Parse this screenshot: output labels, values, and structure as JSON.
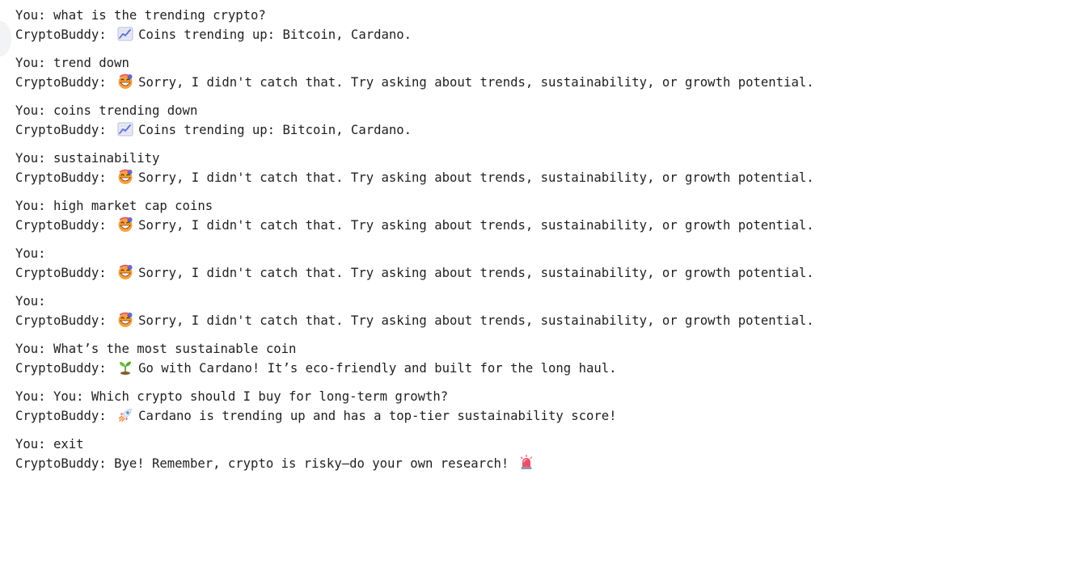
{
  "you_label": "You:",
  "bot_label": "CryptoBuddy:",
  "exchanges": [
    {
      "user": "what is the trending crypto?",
      "icon": "chart-increasing-icon",
      "reply": "Coins trending up: Bitcoin, Cardano."
    },
    {
      "user": "trend down",
      "icon": "grinning-face-icon",
      "reply": "Sorry, I didn't catch that. Try asking about trends, sustainability, or growth potential."
    },
    {
      "user": "coins trending down",
      "icon": "chart-increasing-icon",
      "reply": "Coins trending up: Bitcoin, Cardano."
    },
    {
      "user": "sustainability",
      "icon": "grinning-face-icon",
      "reply": "Sorry, I didn't catch that. Try asking about trends, sustainability, or growth potential."
    },
    {
      "user": "high market cap coins",
      "icon": "grinning-face-icon",
      "reply": "Sorry, I didn't catch that. Try asking about trends, sustainability, or growth potential."
    },
    {
      "user": "",
      "icon": "grinning-face-icon",
      "reply": "Sorry, I didn't catch that. Try asking about trends, sustainability, or growth potential."
    },
    {
      "user": "",
      "icon": "grinning-face-icon",
      "reply": "Sorry, I didn't catch that. Try asking about trends, sustainability, or growth potential."
    },
    {
      "user": "What’s the most sustainable coin",
      "icon": "seedling-icon",
      "reply": "Go with Cardano! It’s eco-friendly and built for the long haul."
    },
    {
      "user": "You: Which crypto should I buy for long-term growth?",
      "icon": "rocket-icon",
      "reply": "Cardano is trending up and has a top-tier sustainability score!"
    }
  ],
  "final": {
    "user": "exit",
    "reply": "Bye! Remember, crypto is risky—do your own research!",
    "trailing_icon": "police-light-icon"
  }
}
